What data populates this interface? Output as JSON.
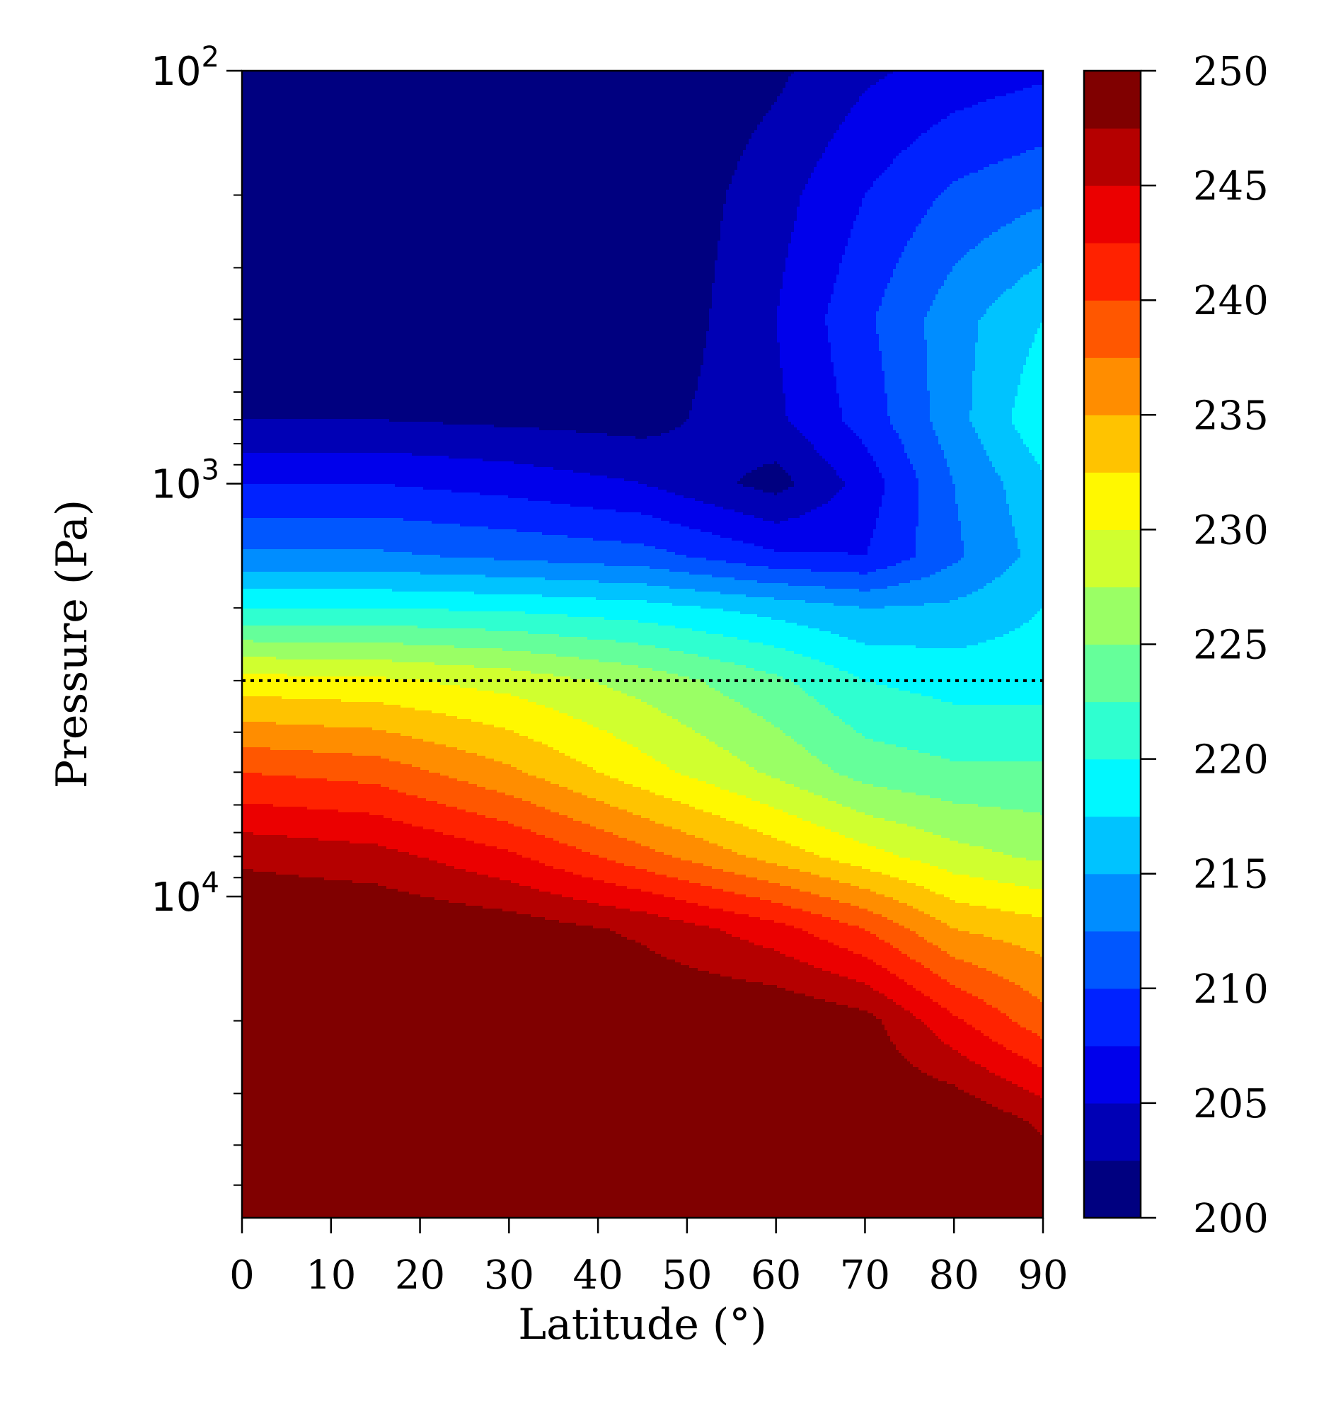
{
  "chart_data": {
    "type": "heatmap",
    "subtype": "filled-contour",
    "colormap": "jet",
    "title": "",
    "xlabel": "Latitude (°)",
    "ylabel": "Pressure (Pa)",
    "xlim": [
      0,
      90
    ],
    "ylim": [
      100,
      60000
    ],
    "yscale": "log",
    "yaxis_inverted": true,
    "x_ticks": [
      0,
      10,
      20,
      30,
      40,
      50,
      60,
      70,
      80,
      90
    ],
    "x_tick_labels": [
      "0",
      "10",
      "20",
      "30",
      "40",
      "50",
      "60",
      "70",
      "80",
      "90"
    ],
    "y_ticks": [
      100,
      1000,
      10000
    ],
    "y_tick_labels": [
      {
        "base": "10",
        "exp": "2"
      },
      {
        "base": "10",
        "exp": "3"
      },
      {
        "base": "10",
        "exp": "4"
      }
    ],
    "colorbar": {
      "min": 200,
      "max": 250,
      "level_step": 2.5,
      "ticks": [
        200,
        205,
        210,
        215,
        220,
        225,
        230,
        235,
        240,
        245,
        250
      ],
      "tick_labels": [
        "200",
        "205",
        "210",
        "215",
        "220",
        "225",
        "230",
        "235",
        "240",
        "245",
        "250"
      ]
    },
    "reference_line": {
      "pressure": 3000,
      "style": "dotted",
      "color": "#000000"
    },
    "grid": false,
    "x": [
      0,
      15,
      30,
      45,
      60,
      70,
      80,
      90
    ],
    "y": [
      100,
      200,
      400,
      700,
      1000,
      1500,
      2000,
      3000,
      5000,
      8000,
      12000,
      20000,
      35000,
      60000
    ],
    "z": [
      [
        200.0,
        200.0,
        200.0,
        200.0,
        202.0,
        204.5,
        206.0,
        207.0
      ],
      [
        200.0,
        200.0,
        200.0,
        200.0,
        204.0,
        207.5,
        210.5,
        212.0
      ],
      [
        200.0,
        200.0,
        200.0,
        200.0,
        205.0,
        209.5,
        214.0,
        217.5
      ],
      [
        202.5,
        202.5,
        202.0,
        201.5,
        204.5,
        208.5,
        214.0,
        219.5
      ],
      [
        207.5,
        207.5,
        206.5,
        205.0,
        201.5,
        206.0,
        212.5,
        217.0
      ],
      [
        213.0,
        213.0,
        212.0,
        211.0,
        208.0,
        207.5,
        212.0,
        216.0
      ],
      [
        220.0,
        220.0,
        219.5,
        218.5,
        216.5,
        215.0,
        215.5,
        217.5
      ],
      [
        231.0,
        230.5,
        229.0,
        226.5,
        223.0,
        220.0,
        219.0,
        219.0
      ],
      [
        240.0,
        239.0,
        235.5,
        231.0,
        227.0,
        224.0,
        223.0,
        223.0
      ],
      [
        247.0,
        246.0,
        243.0,
        238.5,
        234.0,
        231.0,
        228.5,
        227.0
      ],
      [
        250.0,
        250.0,
        249.0,
        247.0,
        243.5,
        240.0,
        235.0,
        233.5
      ],
      [
        250.0,
        250.0,
        250.0,
        250.0,
        250.0,
        248.5,
        243.0,
        238.5
      ],
      [
        250.0,
        250.0,
        250.0,
        250.0,
        250.0,
        250.0,
        250.0,
        247.0
      ],
      [
        250.0,
        250.0,
        250.0,
        250.0,
        250.0,
        250.0,
        250.0,
        250.0
      ]
    ]
  }
}
